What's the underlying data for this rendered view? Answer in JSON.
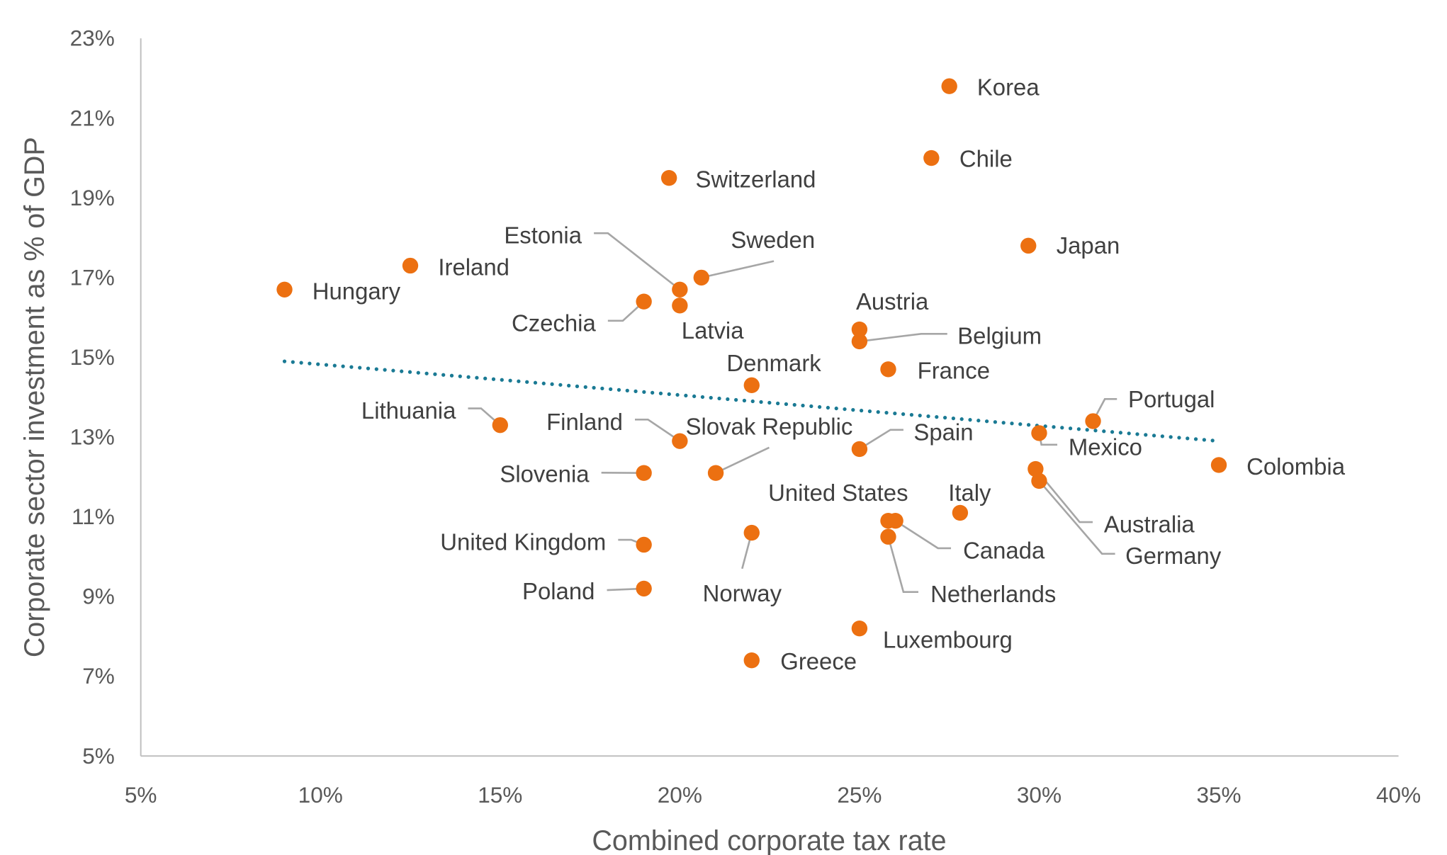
{
  "chart_data": {
    "type": "scatter",
    "title": "",
    "xlabel": "Combined corporate tax rate",
    "ylabel": "Corporate sector investment as % of GDP",
    "xlim": [
      5,
      40
    ],
    "ylim": [
      5,
      23
    ],
    "xticks": [
      "5%",
      "10%",
      "15%",
      "20%",
      "25%",
      "30%",
      "35%",
      "40%"
    ],
    "yticks": [
      "5%",
      "7%",
      "9%",
      "11%",
      "13%",
      "15%",
      "17%",
      "19%",
      "21%",
      "23%"
    ],
    "grid": false,
    "legend": "none",
    "colors": {
      "points": "#EC7011",
      "trendline": "#1A7A94",
      "leader": "#A6A6A6"
    },
    "trendline": {
      "style": "dotted",
      "x": [
        9.0,
        35.0
      ],
      "y": [
        14.9,
        12.9
      ]
    },
    "points": [
      {
        "label": "Korea",
        "x": 27.5,
        "y": 21.8
      },
      {
        "label": "Chile",
        "x": 27.0,
        "y": 20.0
      },
      {
        "label": "Switzerland",
        "x": 19.7,
        "y": 19.5
      },
      {
        "label": "Japan",
        "x": 29.7,
        "y": 17.8
      },
      {
        "label": "Ireland",
        "x": 12.5,
        "y": 17.3
      },
      {
        "label": "Hungary",
        "x": 9.0,
        "y": 16.7
      },
      {
        "label": "Sweden",
        "x": 20.6,
        "y": 17.0
      },
      {
        "label": "Estonia",
        "x": 20.0,
        "y": 16.7
      },
      {
        "label": "Czechia",
        "x": 19.0,
        "y": 16.4
      },
      {
        "label": "Latvia",
        "x": 20.0,
        "y": 16.3
      },
      {
        "label": "Austria",
        "x": 25.0,
        "y": 15.7
      },
      {
        "label": "Belgium",
        "x": 25.0,
        "y": 15.4
      },
      {
        "label": "France",
        "x": 25.8,
        "y": 14.7
      },
      {
        "label": "Denmark",
        "x": 22.0,
        "y": 14.3
      },
      {
        "label": "Portugal",
        "x": 31.5,
        "y": 13.4
      },
      {
        "label": "Lithuania",
        "x": 15.0,
        "y": 13.3
      },
      {
        "label": "Mexico",
        "x": 30.0,
        "y": 13.1
      },
      {
        "label": "Finland",
        "x": 20.0,
        "y": 12.9
      },
      {
        "label": "Spain",
        "x": 25.0,
        "y": 12.7
      },
      {
        "label": "Colombia",
        "x": 35.0,
        "y": 12.3
      },
      {
        "label": "Australia",
        "x": 29.9,
        "y": 12.2
      },
      {
        "label": "Slovenia",
        "x": 19.0,
        "y": 12.1
      },
      {
        "label": "Slovak Republic",
        "x": 21.0,
        "y": 12.1
      },
      {
        "label": "Germany",
        "x": 30.0,
        "y": 11.9
      },
      {
        "label": "Italy",
        "x": 27.8,
        "y": 11.1
      },
      {
        "label": "United States",
        "x": 25.8,
        "y": 10.9
      },
      {
        "label": "Canada",
        "x": 26.0,
        "y": 10.9
      },
      {
        "label": "Norway",
        "x": 22.0,
        "y": 10.6
      },
      {
        "label": "Netherlands",
        "x": 25.8,
        "y": 10.5
      },
      {
        "label": "United Kingdom",
        "x": 19.0,
        "y": 10.3
      },
      {
        "label": "Poland",
        "x": 19.0,
        "y": 9.2
      },
      {
        "label": "Luxembourg",
        "x": 25.0,
        "y": 8.2
      },
      {
        "label": "Greece",
        "x": 22.0,
        "y": 7.4
      }
    ]
  }
}
